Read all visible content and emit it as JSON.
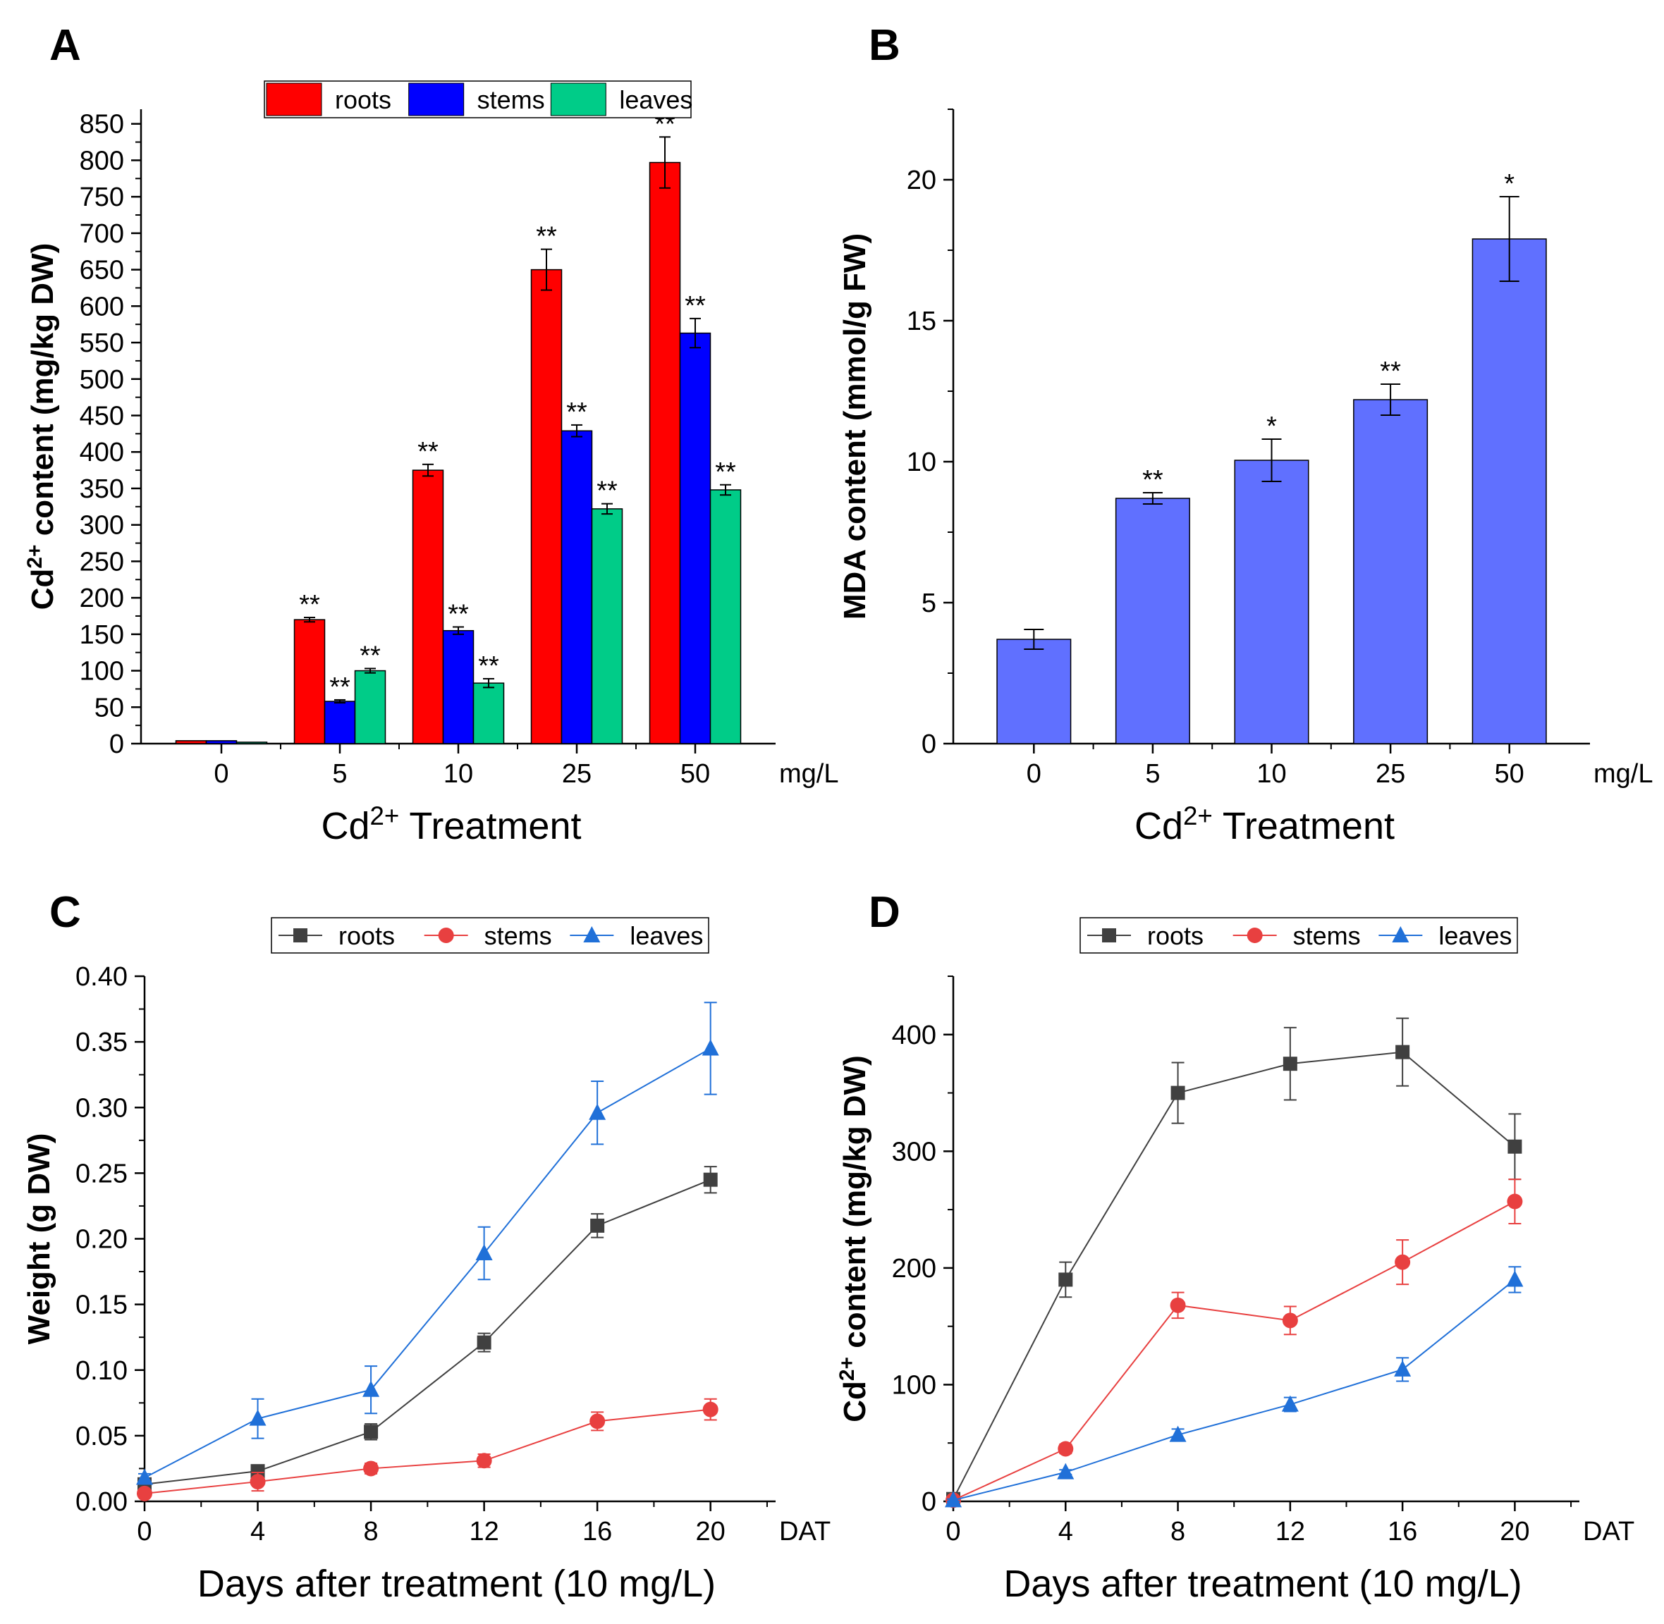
{
  "figure": {
    "panels": [
      "A",
      "B",
      "C",
      "D"
    ]
  },
  "chart_data": [
    {
      "panel": "A",
      "type": "bar",
      "categories": [
        "0",
        "5",
        "10",
        "25",
        "50"
      ],
      "unit": "mg/L",
      "xlabel_main": "Cd",
      "xlabel_sup": "2+",
      "xlabel_rest": " Treatment",
      "ylabel_main": "Cd",
      "ylabel_sup": "2+",
      "ylabel_rest": " content (mg/kg DW)",
      "ylim": [
        0,
        870
      ],
      "yticks": [
        0,
        50,
        100,
        150,
        200,
        250,
        300,
        350,
        400,
        450,
        500,
        550,
        600,
        650,
        700,
        750,
        800,
        850
      ],
      "series": [
        {
          "name": "roots",
          "color": "#ff0000",
          "values": [
            4,
            170,
            375,
            650,
            797
          ],
          "errors": [
            0,
            3,
            8,
            28,
            35
          ],
          "annotations": [
            "",
            "**",
            "**",
            "**",
            "**"
          ]
        },
        {
          "name": "stems",
          "color": "#0000ff",
          "values": [
            4,
            58,
            155,
            429,
            563
          ],
          "errors": [
            0,
            2,
            5,
            8,
            20
          ],
          "annotations": [
            "",
            "**",
            "**",
            "**",
            "**"
          ]
        },
        {
          "name": "leaves",
          "color": "#00cc88",
          "values": [
            2,
            100,
            83,
            322,
            348
          ],
          "errors": [
            0,
            3,
            6,
            7,
            7
          ],
          "annotations": [
            "",
            "**",
            "**",
            "**",
            "**"
          ]
        }
      ]
    },
    {
      "panel": "B",
      "type": "bar",
      "categories": [
        "0",
        "5",
        "10",
        "25",
        "50"
      ],
      "unit": "mg/L",
      "xlabel_main": "Cd",
      "xlabel_sup": "2+",
      "xlabel_rest": " Treatment",
      "ylabel": "MDA content (mmol/g FW)",
      "ylim": [
        0,
        22.5
      ],
      "yticks": [
        0,
        5,
        10,
        15,
        20
      ],
      "series": [
        {
          "name": "MDA",
          "color": "#6070ff",
          "values": [
            3.7,
            8.7,
            10.05,
            12.2,
            17.9
          ],
          "errors": [
            0.35,
            0.2,
            0.75,
            0.55,
            1.5
          ],
          "annotations": [
            "",
            "**",
            "*",
            "**",
            "*"
          ]
        }
      ]
    },
    {
      "panel": "C",
      "type": "line",
      "x": [
        0,
        4,
        8,
        12,
        16,
        20
      ],
      "unit": "DAT",
      "xlabel": "Days after treatment (10 mg/L)",
      "ylabel": "Weight (g DW)",
      "xlim": [
        0,
        22.3
      ],
      "ylim": [
        0,
        0.4
      ],
      "xticks": [
        0,
        4,
        8,
        12,
        16,
        20
      ],
      "yticks": [
        "0.00",
        "0.05",
        "0.10",
        "0.15",
        "0.20",
        "0.25",
        "0.30",
        "0.35",
        "0.40"
      ],
      "series": [
        {
          "name": "roots",
          "color": "#404040",
          "marker": "square",
          "values": [
            0.013,
            0.023,
            0.053,
            0.121,
            0.21,
            0.245
          ],
          "errors": [
            0.002,
            0.004,
            0.006,
            0.007,
            0.009,
            0.01
          ]
        },
        {
          "name": "stems",
          "color": "#e84040",
          "marker": "circle",
          "values": [
            0.006,
            0.015,
            0.025,
            0.031,
            0.061,
            0.07
          ],
          "errors": [
            0.002,
            0.007,
            0.004,
            0.005,
            0.007,
            0.008
          ]
        },
        {
          "name": "leaves",
          "color": "#2070d8",
          "marker": "triangle",
          "values": [
            0.018,
            0.063,
            0.085,
            0.189,
            0.296,
            0.345
          ],
          "errors": [
            0.003,
            0.015,
            0.018,
            0.02,
            0.024,
            0.035
          ]
        }
      ]
    },
    {
      "panel": "D",
      "type": "line",
      "x": [
        0,
        4,
        8,
        12,
        16,
        20
      ],
      "unit": "DAT",
      "xlabel": "Days after treatment  (10 mg/L)",
      "ylabel_main": "Cd",
      "ylabel_sup": "2+",
      "ylabel_rest": " content (mg/kg DW)",
      "xlim": [
        0,
        22.3
      ],
      "ylim": [
        0,
        450
      ],
      "xticks": [
        0,
        4,
        8,
        12,
        16,
        20
      ],
      "yticks": [
        0,
        100,
        200,
        300,
        400
      ],
      "series": [
        {
          "name": "roots",
          "color": "#404040",
          "marker": "square",
          "values": [
            2,
            190,
            350,
            375,
            385,
            304
          ],
          "errors": [
            1,
            15,
            26,
            31,
            29,
            28
          ]
        },
        {
          "name": "stems",
          "color": "#e84040",
          "marker": "circle",
          "values": [
            1,
            45,
            168,
            155,
            205,
            257
          ],
          "errors": [
            1,
            4,
            11,
            12,
            19,
            19
          ]
        },
        {
          "name": "leaves",
          "color": "#2070d8",
          "marker": "triangle",
          "values": [
            1,
            25,
            57,
            83,
            113,
            190
          ],
          "errors": [
            1,
            2,
            5,
            6,
            10,
            11
          ]
        }
      ]
    }
  ]
}
